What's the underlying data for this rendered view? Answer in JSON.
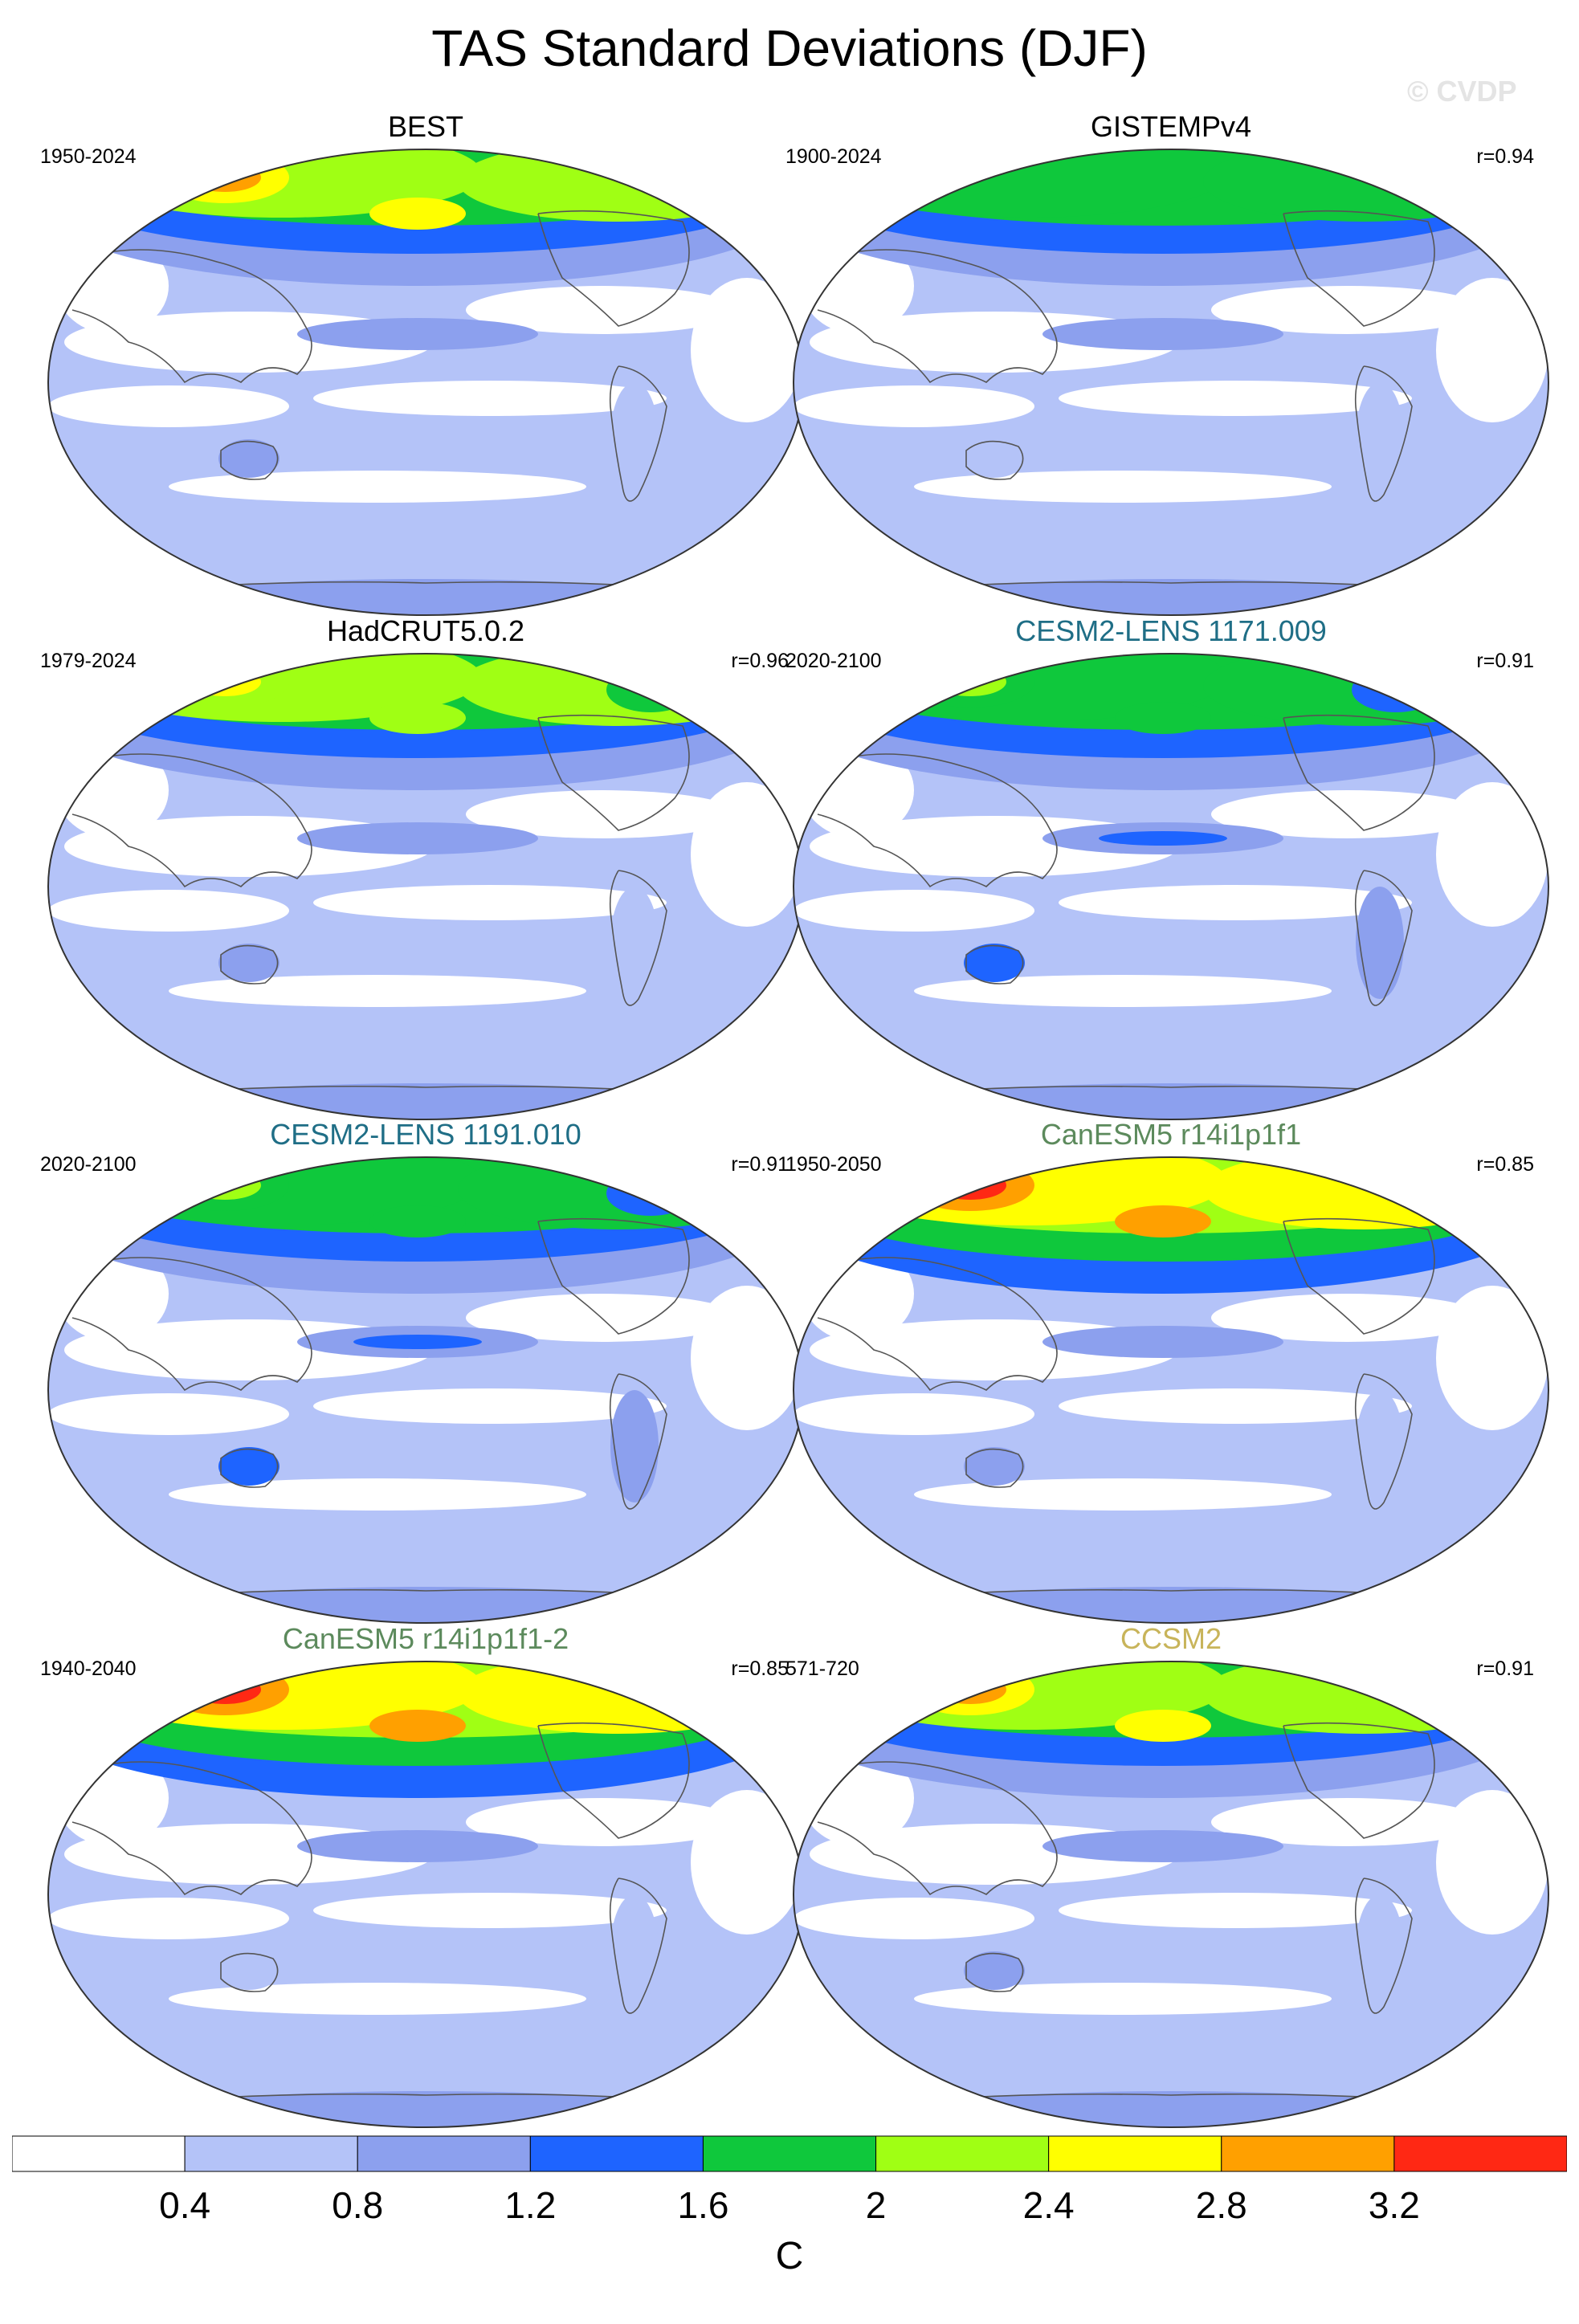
{
  "title": "TAS Standard Deviations (DJF)",
  "watermark": "© CVDP",
  "panels": [
    {
      "title": "BEST",
      "title_color": "#000000",
      "period": "1950-2024",
      "r": "",
      "fields": {
        "mid": 1,
        "extra": 3,
        "spot": 4
      }
    },
    {
      "title": "GISTEMPv4",
      "title_color": "#000000",
      "period": "1900-2024",
      "r": "r=0.94",
      "fields": {
        "mid": 0,
        "extra": 2,
        "spot": 0
      }
    },
    {
      "title": "HadCRUT5.0.2",
      "title_color": "#000000",
      "period": "1979-2024",
      "r": "r=0.96",
      "fields": {
        "mid": 1,
        "extra": 3,
        "spot": 3
      }
    },
    {
      "title": "CESM2-LENS 1171.009",
      "title_color": "#1f6e86",
      "period": "2020-2100",
      "r": "r=0.91",
      "fields": {
        "mid": 2,
        "extra": 2,
        "spot": 2
      }
    },
    {
      "title": "CESM2-LENS 1191.010",
      "title_color": "#1f6e86",
      "period": "2020-2100",
      "r": "r=0.91",
      "fields": {
        "mid": 2,
        "extra": 2,
        "spot": 2
      }
    },
    {
      "title": "CanESM5 r14i1p1f1",
      "title_color": "#5c8a5c",
      "period": "1950-2050",
      "r": "r=0.85",
      "fields": {
        "mid": 1,
        "extra": 4,
        "spot": 5
      }
    },
    {
      "title": "CanESM5 r14i1p1f1-2",
      "title_color": "#5c8a5c",
      "period": "1940-2040",
      "r": "r=0.85",
      "fields": {
        "mid": 0,
        "extra": 4,
        "spot": 5
      }
    },
    {
      "title": "CCSM2",
      "title_color": "#c8b45a",
      "period": "571-720",
      "r": "r=0.91",
      "fields": {
        "mid": 1,
        "extra": 3,
        "spot": 4
      }
    }
  ],
  "colorbar": {
    "colors": [
      "#ffffff",
      "#b4c3f8",
      "#8ca0ee",
      "#1e64ff",
      "#0fc83c",
      "#a0ff14",
      "#ffff00",
      "#ffa000",
      "#ff2814"
    ],
    "labels": [
      "0.4",
      "0.8",
      "1.2",
      "1.6",
      "2",
      "2.4",
      "2.8",
      "3.2"
    ],
    "unit": "C"
  }
}
